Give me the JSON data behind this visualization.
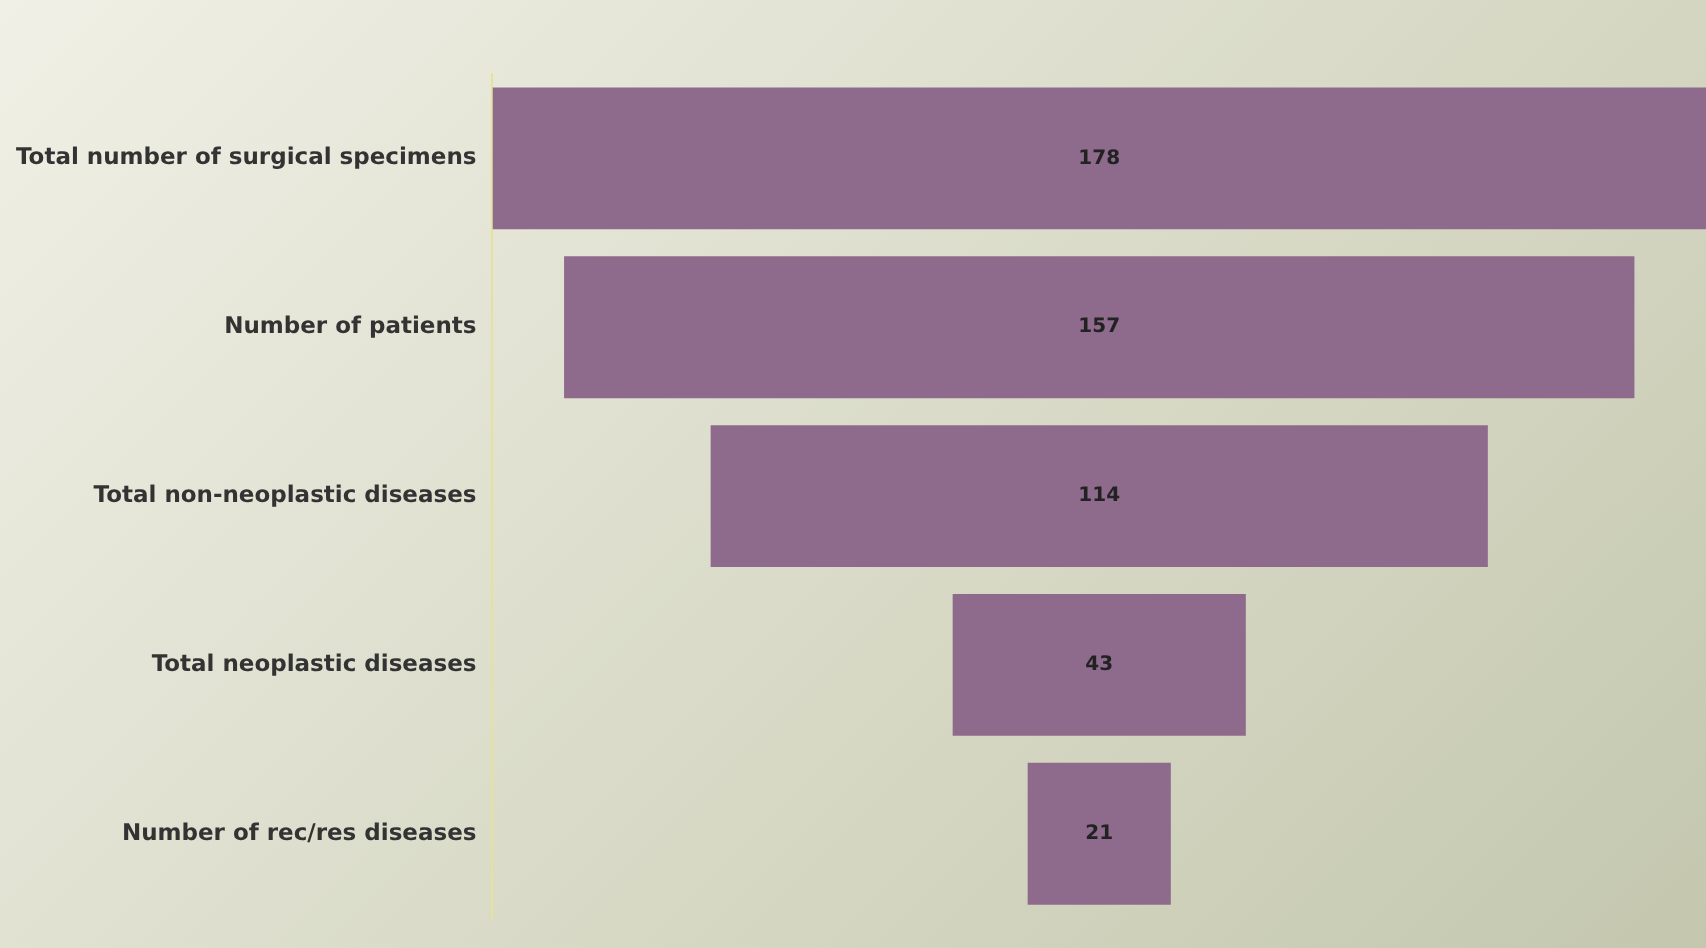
{
  "chart_data": {
    "type": "other",
    "categories": [
      "Total number of surgical specimens",
      "Number of patients",
      "Total non-neoplastic diseases",
      "Total neoplastic diseases",
      "Number of rec/res diseases"
    ],
    "values": [
      178,
      157,
      114,
      43,
      21
    ],
    "color": "#8e6b8c",
    "data_labels": true
  }
}
